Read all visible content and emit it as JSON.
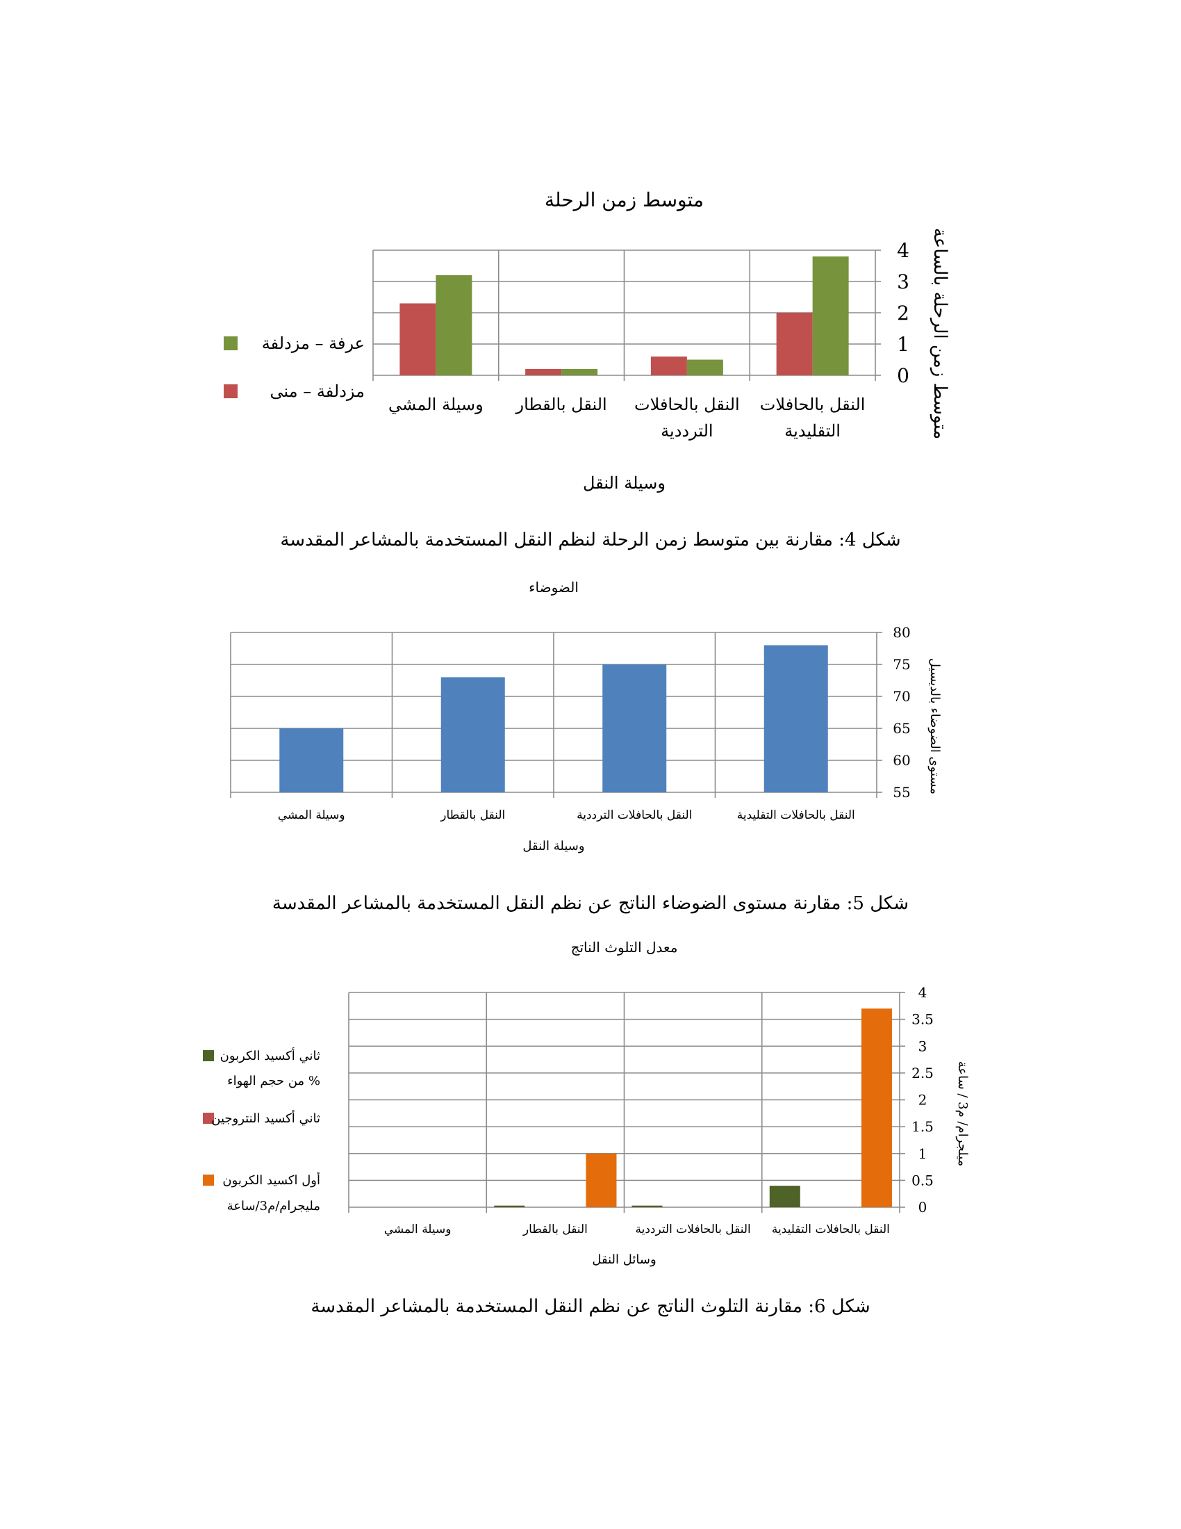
{
  "figures": [
    {
      "caption": "شكل 4:  مقارنة بين متوسط زمن الرحلة لنظم النقل المستخدمة بالمشاعر المقدسة"
    },
    {
      "caption": "شكل 5: مقارنة مستوى الضوضاء الناتج عن نظم النقل المستخدمة بالمشاعر المقدسة"
    },
    {
      "caption": "شكل 6: مقارنة التلوث الناتج عن نظم النقل المستخدمة بالمشاعر المقدسة"
    }
  ],
  "chart_data": [
    {
      "type": "bar",
      "title": "متوسط زمن الرحلة",
      "xlabel": "وسيلة النقل",
      "ylabel": "متوسط زمن الرحلة بالساعة",
      "categories": [
        [
          "النقل بالحافلات",
          "التقليدية"
        ],
        [
          "النقل بالحافلات",
          "الترددية"
        ],
        [
          "النقل بالقطار"
        ],
        [
          "وسيلة المشي"
        ]
      ],
      "ylim": [
        0,
        4
      ],
      "yticks": [
        0,
        1,
        2,
        3,
        4
      ],
      "grid": true,
      "legend": "left",
      "series": [
        {
          "name": "مزدلفة –  منى",
          "color": "#c0504d",
          "values": [
            2.0,
            0.6,
            0.2,
            2.3
          ]
        },
        {
          "name": "عرفة – مزدلفة",
          "color": "#77933c",
          "values": [
            3.8,
            0.5,
            0.2,
            3.2
          ]
        }
      ]
    },
    {
      "type": "bar",
      "title": "الضوضاء",
      "xlabel": "وسيلة النقل",
      "ylabel": "مستوى الضوضاء بالديسيل",
      "categories": [
        [
          "النقل بالحافلات التقليدية"
        ],
        [
          "النقل بالحافلات الترددية"
        ],
        [
          "النقل بالقطار"
        ],
        [
          "وسيلة المشي"
        ]
      ],
      "ylim": [
        55,
        80
      ],
      "yticks": [
        55,
        60,
        65,
        70,
        75,
        80
      ],
      "grid": true,
      "series": [
        {
          "color": "#4f81bd",
          "values": [
            78,
            75,
            73,
            65
          ]
        }
      ]
    },
    {
      "type": "bar",
      "title": "معدل التلوث الناتج",
      "xlabel": "وسائل النقل",
      "ylabel": "ميلجرام/ م3 / ساعة",
      "categories": [
        [
          "النقل بالحافلات التقليدية"
        ],
        [
          "النقل بالحافلات الترددية"
        ],
        [
          "النقل بالقطار"
        ],
        [
          "وسيلة المشي"
        ]
      ],
      "ylim": [
        0,
        4
      ],
      "yticks": [
        0,
        0.5,
        1,
        1.5,
        2,
        2.5,
        3,
        3.5,
        4
      ],
      "grid": true,
      "legend": "left",
      "series": [
        {
          "name": [
            "ثاني أكسيد الكربون",
            "% من حجم الهواء"
          ],
          "color": "#4f6228",
          "values": [
            0.4,
            0.03,
            0.03,
            0
          ]
        },
        {
          "name": [
            "ثاني أكسيد النتروجين"
          ],
          "color": "#c0504d",
          "values": [
            0,
            0,
            0,
            0
          ]
        },
        {
          "name": [
            "أول اكسيد الكربون",
            "مليجرام/م3/ساعة"
          ],
          "color": "#e46c0a",
          "values": [
            3.7,
            0,
            1.0,
            0
          ]
        }
      ]
    }
  ]
}
